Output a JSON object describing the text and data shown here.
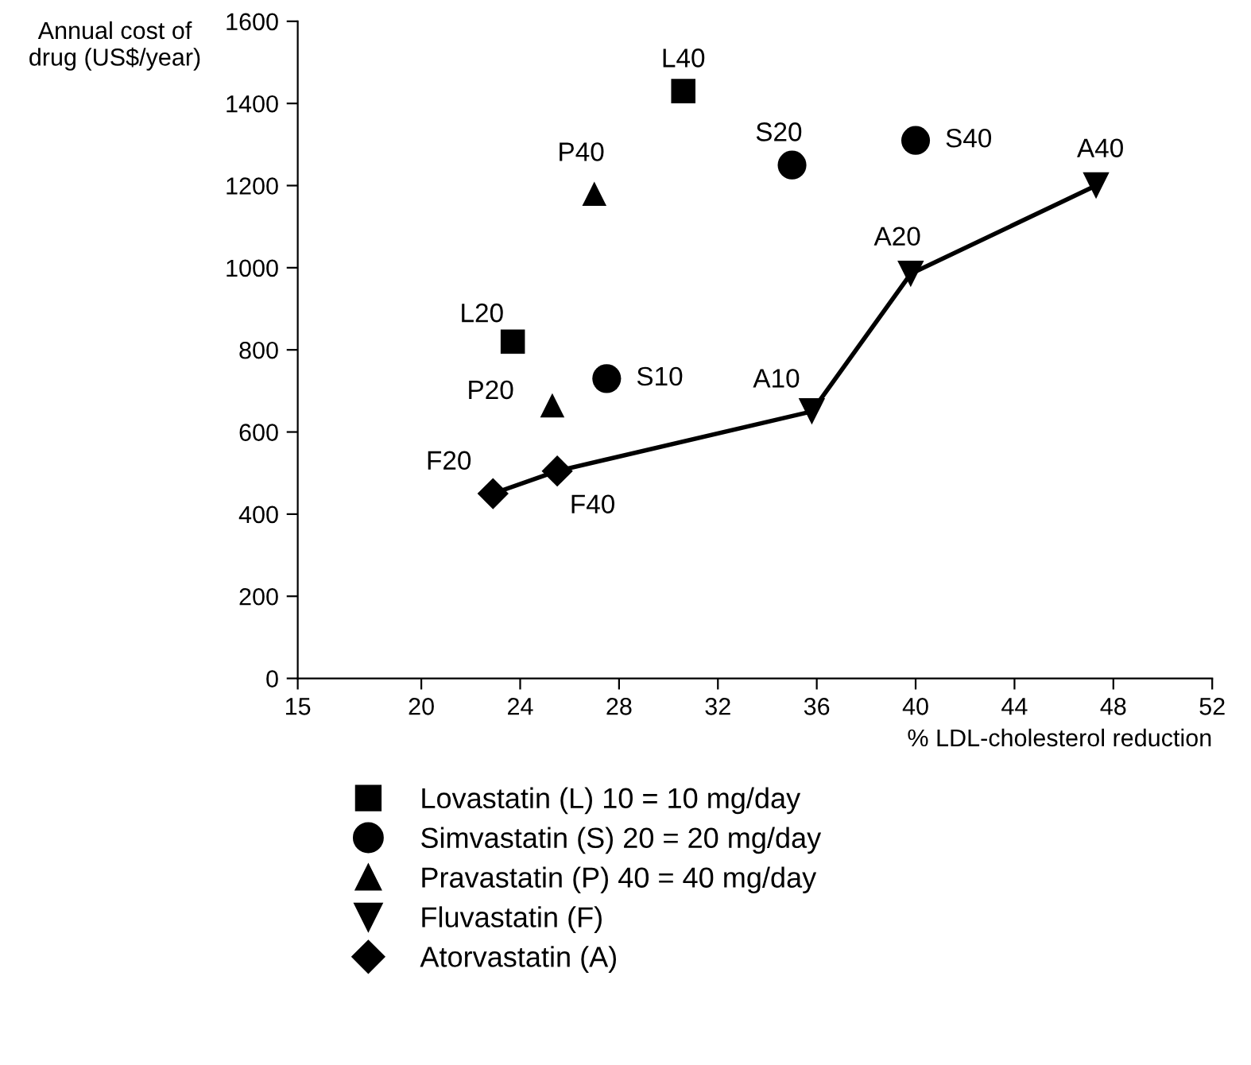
{
  "chart_data": {
    "type": "scatter",
    "xlabel": "% LDL-cholesterol reduction",
    "ylabel": "Annual cost of drug (US$/year)",
    "xlim": [
      15,
      52
    ],
    "xticks": [
      15,
      20,
      24,
      28,
      32,
      36,
      40,
      44,
      48,
      52
    ],
    "ylim": [
      0,
      1600
    ],
    "yticks": [
      0,
      200,
      400,
      600,
      800,
      1000,
      1200,
      1400,
      1600
    ],
    "grid": false,
    "legend": "bottom",
    "series": [
      {
        "name": "Lovastatin (L) 10 = 10 mg/day",
        "color": "#000000",
        "marker": "square",
        "x": [
          23.7,
          30.6
        ],
        "values": [
          820,
          1430
        ]
      },
      {
        "name": "Simvastatin (S) 20 = 20 mg/day",
        "color": "#000000",
        "marker": "circle",
        "x": [
          27.5,
          35.0,
          40.0
        ],
        "values": [
          730,
          1250,
          1310
        ]
      },
      {
        "name": "Pravastatin (P) 40 = 40 mg/day",
        "color": "#000000",
        "marker": "triangle",
        "x": [
          25.3,
          27.0
        ],
        "values": [
          665,
          1180
        ]
      },
      {
        "name": "Fluvastatin (F)",
        "color": "#000000",
        "marker": "triangle_down",
        "x": [
          35.8,
          39.8,
          47.3
        ],
        "values": [
          650,
          985,
          1200
        ]
      },
      {
        "name": "Atorvastatin (A)",
        "color": "#000000",
        "marker": "diamond",
        "x": [
          22.9,
          25.5
        ],
        "values": [
          450,
          505
        ]
      },
      {
        "type": "line",
        "color": "#000000",
        "marker": "none",
        "line_style": "solid",
        "x": [
          22.9,
          25.5,
          35.8,
          39.8,
          47.3
        ],
        "values": [
          450,
          505,
          650,
          985,
          1200
        ]
      }
    ],
    "annotations": [
      {
        "text": "L40",
        "x": 30.6,
        "y": 1430
      },
      {
        "text": "S20",
        "x": 35.0,
        "y": 1250
      },
      {
        "text": "S40",
        "x": 40.0,
        "y": 1310
      },
      {
        "text": "A40",
        "x": 47.3,
        "y": 1200
      },
      {
        "text": "P40",
        "x": 27.0,
        "y": 1180
      },
      {
        "text": "A20",
        "x": 39.8,
        "y": 985
      },
      {
        "text": "L20",
        "x": 23.7,
        "y": 820
      },
      {
        "text": "S10",
        "x": 27.5,
        "y": 730
      },
      {
        "text": "A10",
        "x": 35.8,
        "y": 650
      },
      {
        "text": "P20",
        "x": 25.3,
        "y": 665
      },
      {
        "text": "F20",
        "x": 22.9,
        "y": 450
      },
      {
        "text": "F40",
        "x": 25.5,
        "y": 505
      }
    ]
  }
}
